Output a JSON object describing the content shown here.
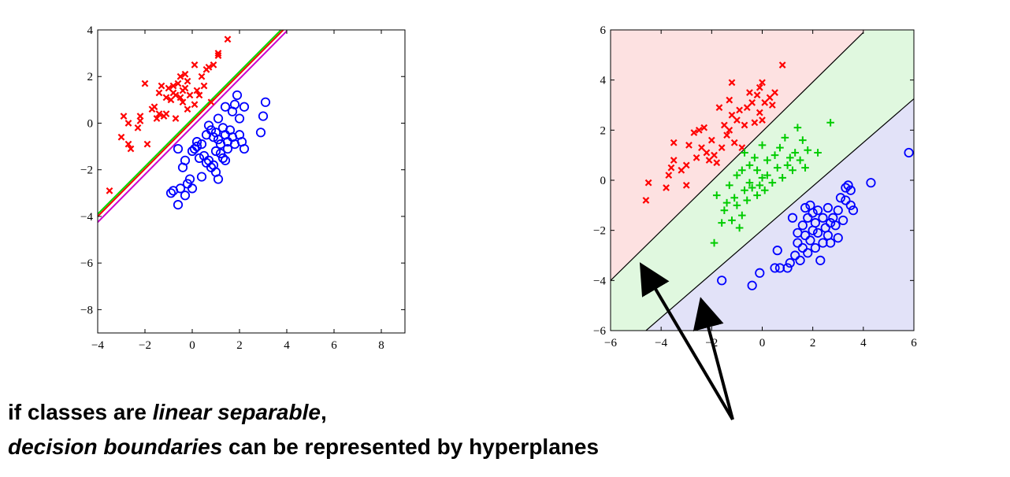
{
  "caption": {
    "line1_prefix": "if classes are ",
    "line1_emph": "linear separable",
    "line1_suffix": ",",
    "line2_emph": "decision boundaries",
    "line2_suffix": " can be represented by hyperplanes"
  },
  "chart_data": [
    {
      "type": "scatter",
      "xlim": [
        -4,
        9
      ],
      "ylim": [
        -9,
        4
      ],
      "x_ticks": [
        -4,
        -2,
        0,
        2,
        4,
        6,
        8
      ],
      "y_ticks": [
        4,
        2,
        0,
        -2,
        -4,
        -6,
        -8
      ],
      "grid": false,
      "series": [
        {
          "marker": "x",
          "color": "#ff0000",
          "points": [
            [
              -3.5,
              -2.9
            ],
            [
              -3.0,
              -0.6
            ],
            [
              -2.9,
              0.3
            ],
            [
              -2.7,
              0.0
            ],
            [
              -2.7,
              -0.9
            ],
            [
              -2.6,
              -1.1
            ],
            [
              -2.3,
              -0.2
            ],
            [
              -2.2,
              0.1
            ],
            [
              -2.2,
              0.3
            ],
            [
              -2.0,
              1.7
            ],
            [
              -1.9,
              -0.9
            ],
            [
              -1.7,
              0.6
            ],
            [
              -1.6,
              0.7
            ],
            [
              -1.5,
              0.2
            ],
            [
              -1.4,
              0.4
            ],
            [
              -1.4,
              1.3
            ],
            [
              -1.3,
              1.6
            ],
            [
              -1.2,
              0.3
            ],
            [
              -1.1,
              0.4
            ],
            [
              -1.1,
              1.1
            ],
            [
              -1.0,
              1.5
            ],
            [
              -0.9,
              1.0
            ],
            [
              -0.8,
              1.3
            ],
            [
              -0.8,
              1.6
            ],
            [
              -0.7,
              0.2
            ],
            [
              -0.7,
              1.2
            ],
            [
              -0.6,
              1.7
            ],
            [
              -0.5,
              1.1
            ],
            [
              -0.5,
              2.0
            ],
            [
              -0.4,
              0.9
            ],
            [
              -0.4,
              1.4
            ],
            [
              -0.3,
              2.1
            ],
            [
              -0.3,
              1.5
            ],
            [
              -0.2,
              0.6
            ],
            [
              -0.2,
              1.8
            ],
            [
              -0.1,
              1.2
            ],
            [
              0.1,
              0.8
            ],
            [
              0.1,
              2.5
            ],
            [
              0.2,
              1.4
            ],
            [
              0.3,
              1.2
            ],
            [
              0.4,
              2.0
            ],
            [
              0.5,
              1.6
            ],
            [
              0.6,
              2.3
            ],
            [
              0.7,
              2.4
            ],
            [
              0.8,
              0.9
            ],
            [
              0.9,
              2.5
            ],
            [
              1.1,
              2.9
            ],
            [
              1.1,
              3.0
            ],
            [
              1.5,
              3.6
            ]
          ]
        },
        {
          "marker": "o",
          "color": "#0000ff",
          "points": [
            [
              -0.9,
              -3.0
            ],
            [
              -0.8,
              -2.9
            ],
            [
              -0.6,
              -1.1
            ],
            [
              -0.6,
              -3.5
            ],
            [
              -0.5,
              -2.8
            ],
            [
              -0.4,
              -1.9
            ],
            [
              -0.3,
              -1.6
            ],
            [
              -0.3,
              -3.1
            ],
            [
              -0.2,
              -2.6
            ],
            [
              -0.1,
              -2.4
            ],
            [
              0.0,
              -1.2
            ],
            [
              0.0,
              -2.8
            ],
            [
              0.1,
              -1.1
            ],
            [
              0.2,
              -1.0
            ],
            [
              0.2,
              -0.8
            ],
            [
              0.3,
              -1.5
            ],
            [
              0.4,
              -0.9
            ],
            [
              0.4,
              -2.3
            ],
            [
              0.5,
              -1.4
            ],
            [
              0.6,
              -0.5
            ],
            [
              0.6,
              -1.7
            ],
            [
              0.7,
              -0.1
            ],
            [
              0.7,
              -1.6
            ],
            [
              0.8,
              -0.3
            ],
            [
              0.8,
              -1.9
            ],
            [
              0.9,
              -0.6
            ],
            [
              0.9,
              -1.8
            ],
            [
              1.0,
              -0.4
            ],
            [
              1.0,
              -1.2
            ],
            [
              1.0,
              -2.1
            ],
            [
              1.1,
              0.2
            ],
            [
              1.1,
              -0.7
            ],
            [
              1.1,
              -2.4
            ],
            [
              1.2,
              -0.9
            ],
            [
              1.2,
              -1.3
            ],
            [
              1.3,
              -0.2
            ],
            [
              1.3,
              -1.5
            ],
            [
              1.4,
              0.7
            ],
            [
              1.4,
              -0.5
            ],
            [
              1.4,
              -1.6
            ],
            [
              1.5,
              -0.8
            ],
            [
              1.5,
              -1.1
            ],
            [
              1.6,
              -0.3
            ],
            [
              1.7,
              0.5
            ],
            [
              1.7,
              -0.6
            ],
            [
              1.8,
              0.8
            ],
            [
              1.8,
              -0.9
            ],
            [
              1.9,
              1.2
            ],
            [
              2.0,
              0.2
            ],
            [
              2.0,
              -0.5
            ],
            [
              2.1,
              -0.8
            ],
            [
              2.2,
              -1.1
            ],
            [
              2.2,
              0.7
            ],
            [
              2.9,
              -0.4
            ],
            [
              3.0,
              0.3
            ],
            [
              3.1,
              0.9
            ]
          ]
        }
      ],
      "lines": [
        {
          "color": "#ff0000",
          "from": [
            -4,
            -4.0
          ],
          "to": [
            4,
            4.15
          ]
        },
        {
          "color": "#00dd00",
          "from": [
            -4,
            -3.9
          ],
          "to": [
            4,
            4.25
          ]
        },
        {
          "color": "#cc00cc",
          "from": [
            -4,
            -4.25
          ],
          "to": [
            4,
            3.95
          ]
        }
      ]
    },
    {
      "type": "scatter",
      "xlim": [
        -6,
        6
      ],
      "ylim": [
        -6,
        6
      ],
      "x_ticks": [
        -6,
        -4,
        -2,
        0,
        2,
        4,
        6
      ],
      "y_ticks": [
        6,
        4,
        2,
        0,
        -2,
        -4,
        -6
      ],
      "grid": false,
      "regions": [
        {
          "color": "#fde1e1"
        },
        {
          "color": "#e0f8df"
        },
        {
          "color": "#e2e2f8"
        }
      ],
      "boundaries": [
        {
          "color": "#000000",
          "from": [
            -6,
            -4.0
          ],
          "to": [
            4.0,
            5.9
          ]
        },
        {
          "color": "#000000",
          "from": [
            -4.6,
            -6.0
          ],
          "to": [
            6.0,
            3.25
          ]
        }
      ],
      "series": [
        {
          "marker": "x",
          "color": "#ff0000",
          "points": [
            [
              -4.6,
              -0.8
            ],
            [
              -4.5,
              -0.1
            ],
            [
              -3.8,
              -0.3
            ],
            [
              -3.7,
              0.2
            ],
            [
              -3.6,
              0.5
            ],
            [
              -3.5,
              0.8
            ],
            [
              -3.5,
              1.5
            ],
            [
              -3.2,
              0.4
            ],
            [
              -3.0,
              -0.2
            ],
            [
              -3.0,
              0.6
            ],
            [
              -2.9,
              1.4
            ],
            [
              -2.7,
              1.9
            ],
            [
              -2.6,
              0.9
            ],
            [
              -2.5,
              2.0
            ],
            [
              -2.4,
              1.3
            ],
            [
              -2.3,
              2.1
            ],
            [
              -2.2,
              1.1
            ],
            [
              -2.1,
              0.8
            ],
            [
              -2.0,
              1.6
            ],
            [
              -1.9,
              1.0
            ],
            [
              -1.8,
              0.7
            ],
            [
              -1.7,
              2.9
            ],
            [
              -1.6,
              1.3
            ],
            [
              -1.5,
              2.2
            ],
            [
              -1.4,
              1.8
            ],
            [
              -1.3,
              2.0
            ],
            [
              -1.3,
              3.2
            ],
            [
              -1.2,
              2.6
            ],
            [
              -1.2,
              3.9
            ],
            [
              -1.1,
              1.5
            ],
            [
              -1.0,
              2.4
            ],
            [
              -0.9,
              2.8
            ],
            [
              -0.8,
              1.3
            ],
            [
              -0.7,
              2.2
            ],
            [
              -0.6,
              2.9
            ],
            [
              -0.5,
              3.5
            ],
            [
              -0.4,
              3.1
            ],
            [
              -0.3,
              2.3
            ],
            [
              -0.2,
              3.4
            ],
            [
              -0.1,
              2.7
            ],
            [
              -0.1,
              3.7
            ],
            [
              0.0,
              2.4
            ],
            [
              0.0,
              3.9
            ],
            [
              0.1,
              3.1
            ],
            [
              0.3,
              3.3
            ],
            [
              0.4,
              3.0
            ],
            [
              0.5,
              3.5
            ],
            [
              0.8,
              4.6
            ]
          ]
        },
        {
          "marker": "+",
          "color": "#00cc00",
          "points": [
            [
              -1.9,
              -2.5
            ],
            [
              -1.8,
              -0.6
            ],
            [
              -1.6,
              -1.7
            ],
            [
              -1.5,
              -1.2
            ],
            [
              -1.4,
              -0.9
            ],
            [
              -1.3,
              -0.2
            ],
            [
              -1.2,
              -1.6
            ],
            [
              -1.1,
              -0.7
            ],
            [
              -1.0,
              -1.0
            ],
            [
              -1.0,
              0.2
            ],
            [
              -0.9,
              -1.9
            ],
            [
              -0.8,
              -1.4
            ],
            [
              -0.8,
              0.4
            ],
            [
              -0.7,
              -0.4
            ],
            [
              -0.7,
              1.1
            ],
            [
              -0.6,
              -0.8
            ],
            [
              -0.5,
              -0.1
            ],
            [
              -0.5,
              0.6
            ],
            [
              -0.4,
              -0.3
            ],
            [
              -0.3,
              0.9
            ],
            [
              -0.2,
              -0.6
            ],
            [
              -0.2,
              0.4
            ],
            [
              -0.1,
              -0.2
            ],
            [
              0.0,
              0.1
            ],
            [
              0.0,
              1.4
            ],
            [
              0.1,
              -0.4
            ],
            [
              0.2,
              0.2
            ],
            [
              0.2,
              0.8
            ],
            [
              0.4,
              -0.1
            ],
            [
              0.5,
              1.0
            ],
            [
              0.6,
              0.5
            ],
            [
              0.7,
              1.3
            ],
            [
              0.8,
              0.1
            ],
            [
              0.9,
              1.7
            ],
            [
              1.0,
              0.6
            ],
            [
              1.1,
              0.9
            ],
            [
              1.2,
              0.4
            ],
            [
              1.3,
              1.1
            ],
            [
              1.4,
              2.1
            ],
            [
              1.5,
              0.8
            ],
            [
              1.6,
              1.6
            ],
            [
              1.7,
              0.5
            ],
            [
              1.8,
              1.2
            ],
            [
              2.2,
              1.1
            ],
            [
              2.7,
              2.3
            ]
          ]
        },
        {
          "marker": "o",
          "color": "#0000ff",
          "points": [
            [
              -1.6,
              -4.0
            ],
            [
              -0.4,
              -4.2
            ],
            [
              -0.1,
              -3.7
            ],
            [
              0.5,
              -3.5
            ],
            [
              0.6,
              -2.8
            ],
            [
              0.7,
              -3.5
            ],
            [
              1.0,
              -3.5
            ],
            [
              1.1,
              -3.3
            ],
            [
              1.2,
              -1.5
            ],
            [
              1.3,
              -3.0
            ],
            [
              1.4,
              -2.5
            ],
            [
              1.4,
              -2.1
            ],
            [
              1.5,
              -3.2
            ],
            [
              1.6,
              -1.8
            ],
            [
              1.6,
              -2.7
            ],
            [
              1.7,
              -1.1
            ],
            [
              1.7,
              -2.2
            ],
            [
              1.8,
              -2.9
            ],
            [
              1.8,
              -1.5
            ],
            [
              1.9,
              -2.4
            ],
            [
              1.9,
              -1.0
            ],
            [
              2.0,
              -2.0
            ],
            [
              2.0,
              -1.3
            ],
            [
              2.1,
              -2.7
            ],
            [
              2.1,
              -1.7
            ],
            [
              2.2,
              -2.1
            ],
            [
              2.2,
              -1.2
            ],
            [
              2.3,
              -3.2
            ],
            [
              2.4,
              -2.5
            ],
            [
              2.4,
              -1.5
            ],
            [
              2.5,
              -1.9
            ],
            [
              2.6,
              -2.2
            ],
            [
              2.6,
              -1.1
            ],
            [
              2.7,
              -1.7
            ],
            [
              2.7,
              -2.5
            ],
            [
              2.8,
              -1.5
            ],
            [
              2.9,
              -1.8
            ],
            [
              3.0,
              -1.2
            ],
            [
              3.0,
              -2.3
            ],
            [
              3.1,
              -0.7
            ],
            [
              3.2,
              -1.6
            ],
            [
              3.3,
              -0.3
            ],
            [
              3.3,
              -0.8
            ],
            [
              3.4,
              -0.2
            ],
            [
              3.5,
              -0.4
            ],
            [
              3.5,
              -1.0
            ],
            [
              3.6,
              -1.2
            ],
            [
              4.3,
              -0.1
            ],
            [
              5.8,
              1.1
            ]
          ]
        }
      ]
    }
  ]
}
